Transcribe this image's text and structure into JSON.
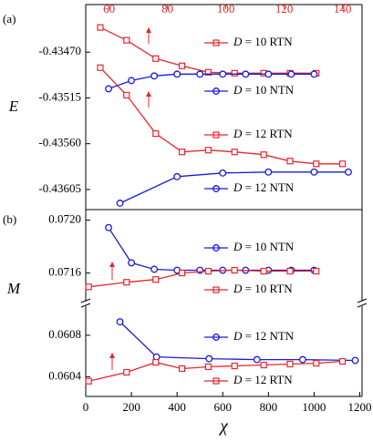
{
  "chart_data": [
    {
      "type": "line",
      "label": "(a)",
      "ylabel": "E",
      "xlim": [
        0,
        1210
      ],
      "x2lim": [
        52,
        146.7
      ],
      "x2ticks": [
        60,
        80,
        100,
        120,
        140
      ],
      "x2color": "#e8262a",
      "ylim": [
        -0.436248,
        -0.434232
      ],
      "yticks": [
        {
          "value": -0.4347,
          "label": "-0.43470"
        },
        {
          "value": -0.43515,
          "label": "-0.43515"
        },
        {
          "value": -0.4356,
          "label": "-0.43560"
        },
        {
          "value": -0.43605,
          "label": "-0.43605"
        }
      ],
      "series": [
        {
          "name": "D = 10 RTN",
          "color": "#e8262a",
          "marker": "square",
          "axis": "x2",
          "x": [
            57,
            66,
            76,
            85,
            94,
            103,
            113,
            122,
            131
          ],
          "values": [
            -0.434457,
            -0.434583,
            -0.434763,
            -0.434835,
            -0.434898,
            -0.434907,
            -0.434907,
            -0.434907,
            -0.434907
          ]
        },
        {
          "name": "D = 10 NTN",
          "color": "#1a1adb",
          "marker": "circle",
          "x": [
            100,
            200,
            300,
            400,
            500,
            600,
            700,
            800,
            900,
            1000
          ],
          "values": [
            -0.43506,
            -0.434979,
            -0.434934,
            -0.434916,
            -0.434916,
            -0.434916,
            -0.434916,
            -0.434916,
            -0.434916,
            -0.434916
          ]
        },
        {
          "name": "D = 12 RTN",
          "color": "#e8262a",
          "marker": "square",
          "axis": "x2",
          "x": [
            57,
            66,
            76,
            85,
            94,
            103,
            113,
            122,
            131,
            140
          ],
          "values": [
            -0.434853,
            -0.435123,
            -0.435501,
            -0.435681,
            -0.435663,
            -0.435681,
            -0.435708,
            -0.435771,
            -0.435798,
            -0.435798
          ]
        },
        {
          "name": "D = 12 NTN",
          "color": "#1a1adb",
          "marker": "circle",
          "x": [
            150,
            400,
            600,
            800,
            1000,
            1150
          ],
          "values": [
            -0.436185,
            -0.435924,
            -0.435888,
            -0.435879,
            -0.435879,
            -0.435879
          ]
        }
      ]
    },
    {
      "type": "line",
      "label": "(b)",
      "ylabel": "M",
      "xlim": [
        0,
        1210
      ],
      "x2lim": [
        52,
        146.7
      ],
      "ylim": [
        0.07139,
        0.07208
      ],
      "yticks": [
        0.0716,
        {
          "value": 0.072,
          "label": "0.0720"
        }
      ],
      "series": [
        {
          "name": "D = 10 NTN",
          "color": "#1a1adb",
          "marker": "circle",
          "x": [
            100,
            200,
            300,
            400,
            500,
            600,
            700,
            800,
            900,
            1000
          ],
          "values": [
            0.071944,
            0.071677,
            0.071628,
            0.071621,
            0.071621,
            0.071621,
            0.071621,
            0.071621,
            0.071621,
            0.071621
          ]
        },
        {
          "name": "D = 10 RTN",
          "color": "#e8262a",
          "marker": "square",
          "axis": "x2",
          "x": [
            53,
            66,
            76,
            85,
            94,
            103,
            113,
            122,
            131
          ],
          "values": [
            0.071495,
            0.07153,
            0.071551,
            0.0716,
            0.071614,
            0.071621,
            0.071614,
            0.071614,
            0.071614
          ]
        }
      ]
    },
    {
      "type": "line",
      "xlabel": "χ",
      "xlim": [
        0,
        1210
      ],
      "x2lim": [
        52,
        146.7
      ],
      "xticks": [
        0,
        200,
        400,
        600,
        800,
        1000,
        1200
      ],
      "ylim": [
        0.06021,
        0.06108
      ],
      "yticks": [
        0.0604,
        0.0608
      ],
      "series": [
        {
          "name": "D = 12 NTN",
          "color": "#1a1adb",
          "marker": "circle",
          "x": [
            150,
            310,
            540,
            750,
            950,
            1180
          ],
          "values": [
            0.06093,
            0.060591,
            0.060574,
            0.060565,
            0.060565,
            0.060557
          ]
        },
        {
          "name": "D = 12 RTN",
          "color": "#e8262a",
          "marker": "square",
          "axis": "x2",
          "x": [
            53,
            66,
            76,
            85,
            94,
            103,
            113,
            122,
            131,
            140
          ],
          "values": [
            0.060357,
            0.060443,
            0.060539,
            0.060478,
            0.060496,
            0.060504,
            0.060513,
            0.060522,
            0.06053,
            0.060548
          ]
        }
      ]
    }
  ]
}
